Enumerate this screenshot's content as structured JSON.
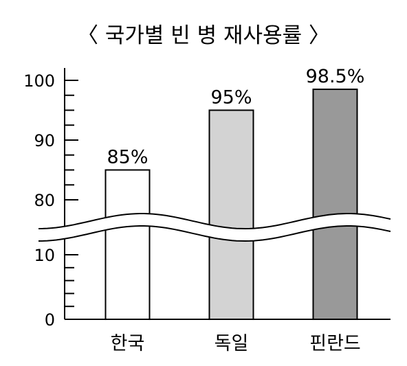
{
  "chart_data": {
    "type": "bar",
    "title": "〈 국가별 빈 병 재사용률 〉",
    "categories": [
      "한국",
      "독일",
      "핀란드"
    ],
    "values": [
      85,
      95,
      98.5
    ],
    "value_labels": [
      "85%",
      "95%",
      "98.5%"
    ],
    "bar_colors": [
      "#ffffff",
      "#d3d3d3",
      "#999999"
    ],
    "y_ticks_labeled": [
      0,
      10,
      80,
      90,
      100
    ],
    "y_tick_labels": [
      "0",
      "10",
      "80",
      "90",
      "100"
    ],
    "ylim": [
      0,
      100
    ],
    "axis_break": [
      10,
      80
    ],
    "grid": false,
    "legend": "none"
  }
}
